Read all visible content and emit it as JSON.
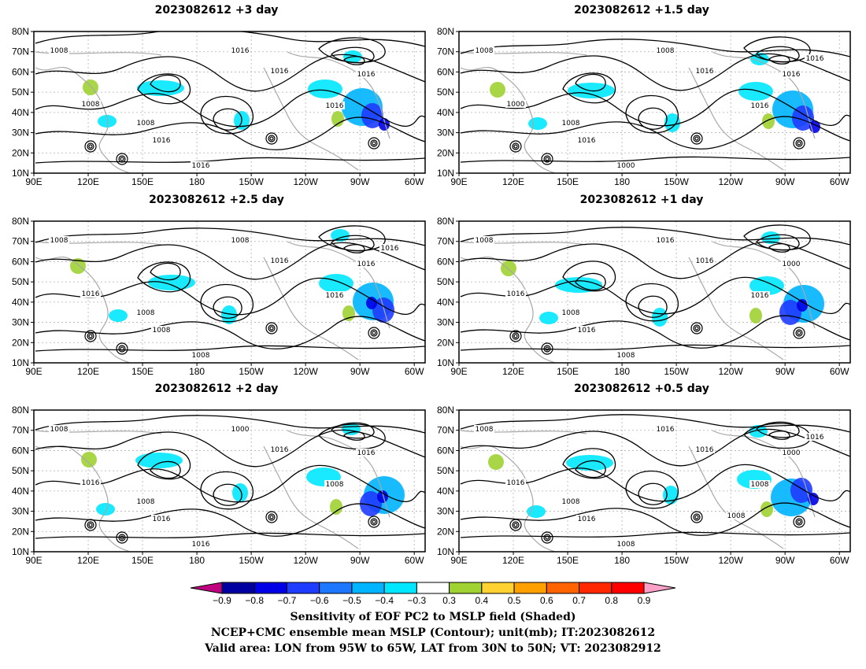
{
  "panels": [
    {
      "title": "2023082612 +3 day",
      "contour_labels": [
        "1008",
        "1008",
        "1016",
        "1008",
        "1016",
        "1016",
        "1016",
        "1016",
        "1016"
      ]
    },
    {
      "title": "2023082612 +1.5 day",
      "contour_labels": [
        "1008",
        "1000",
        "1016",
        "1008",
        "1016",
        "1016",
        "1016",
        "1008",
        "1000",
        "1016"
      ]
    },
    {
      "title": "2023082612 +2.5 day",
      "contour_labels": [
        "1008",
        "1016",
        "1016",
        "1008",
        "1008",
        "1016",
        "1016",
        "1008",
        "1008",
        "1016"
      ]
    },
    {
      "title": "2023082612 +1 day",
      "contour_labels": [
        "1008",
        "1016",
        "1016",
        "1008",
        "1016",
        "1016",
        "1000",
        "1016",
        "1008"
      ]
    },
    {
      "title": "2023082612 +2 day",
      "contour_labels": [
        "1008",
        "1016",
        "1016",
        "1008",
        "1016",
        "1008",
        "1016",
        "1000",
        "1016"
      ]
    },
    {
      "title": "2023082612 +0.5 day",
      "contour_labels": [
        "1008",
        "1016",
        "1016",
        "1008",
        "1016",
        "1008",
        "1000",
        "1016",
        "1008",
        "1016",
        "1008"
      ]
    }
  ],
  "axes": {
    "lat_ticks": [
      "80N",
      "70N",
      "60N",
      "50N",
      "40N",
      "30N",
      "20N",
      "10N"
    ],
    "lon_ticks": [
      "90E",
      "120E",
      "150E",
      "180",
      "150W",
      "120W",
      "90W",
      "60W"
    ]
  },
  "colorbar": {
    "ticks": [
      "−0.9",
      "−0.8",
      "−0.7",
      "−0.6",
      "−0.5",
      "−0.4",
      "−0.3",
      "0.3",
      "0.4",
      "0.5",
      "0.6",
      "0.7",
      "0.8",
      "0.9"
    ],
    "colors": [
      "#bf007f",
      "#0000a0",
      "#0000e6",
      "#1e3cff",
      "#1e78ff",
      "#00b4ff",
      "#00e8ff",
      "#ffffff",
      "#a0d232",
      "#ffd232",
      "#ffa000",
      "#ff6400",
      "#ff2800",
      "#ff0000",
      "#ffa0c8"
    ]
  },
  "caption": {
    "line1": "Sensitivity of EOF PC2 to MSLP field (Shaded)",
    "line2": "NCEP+CMC ensemble mean MSLP (Contour); unit(mb); IT:2023082612",
    "line3": "Valid area: LON from 95W to 65W, LAT from 30N to 50N; VT: 2023082912"
  },
  "colors": {
    "contour": "#000000",
    "coast": "#a8a8a8",
    "grid": "#b0b0b0"
  }
}
